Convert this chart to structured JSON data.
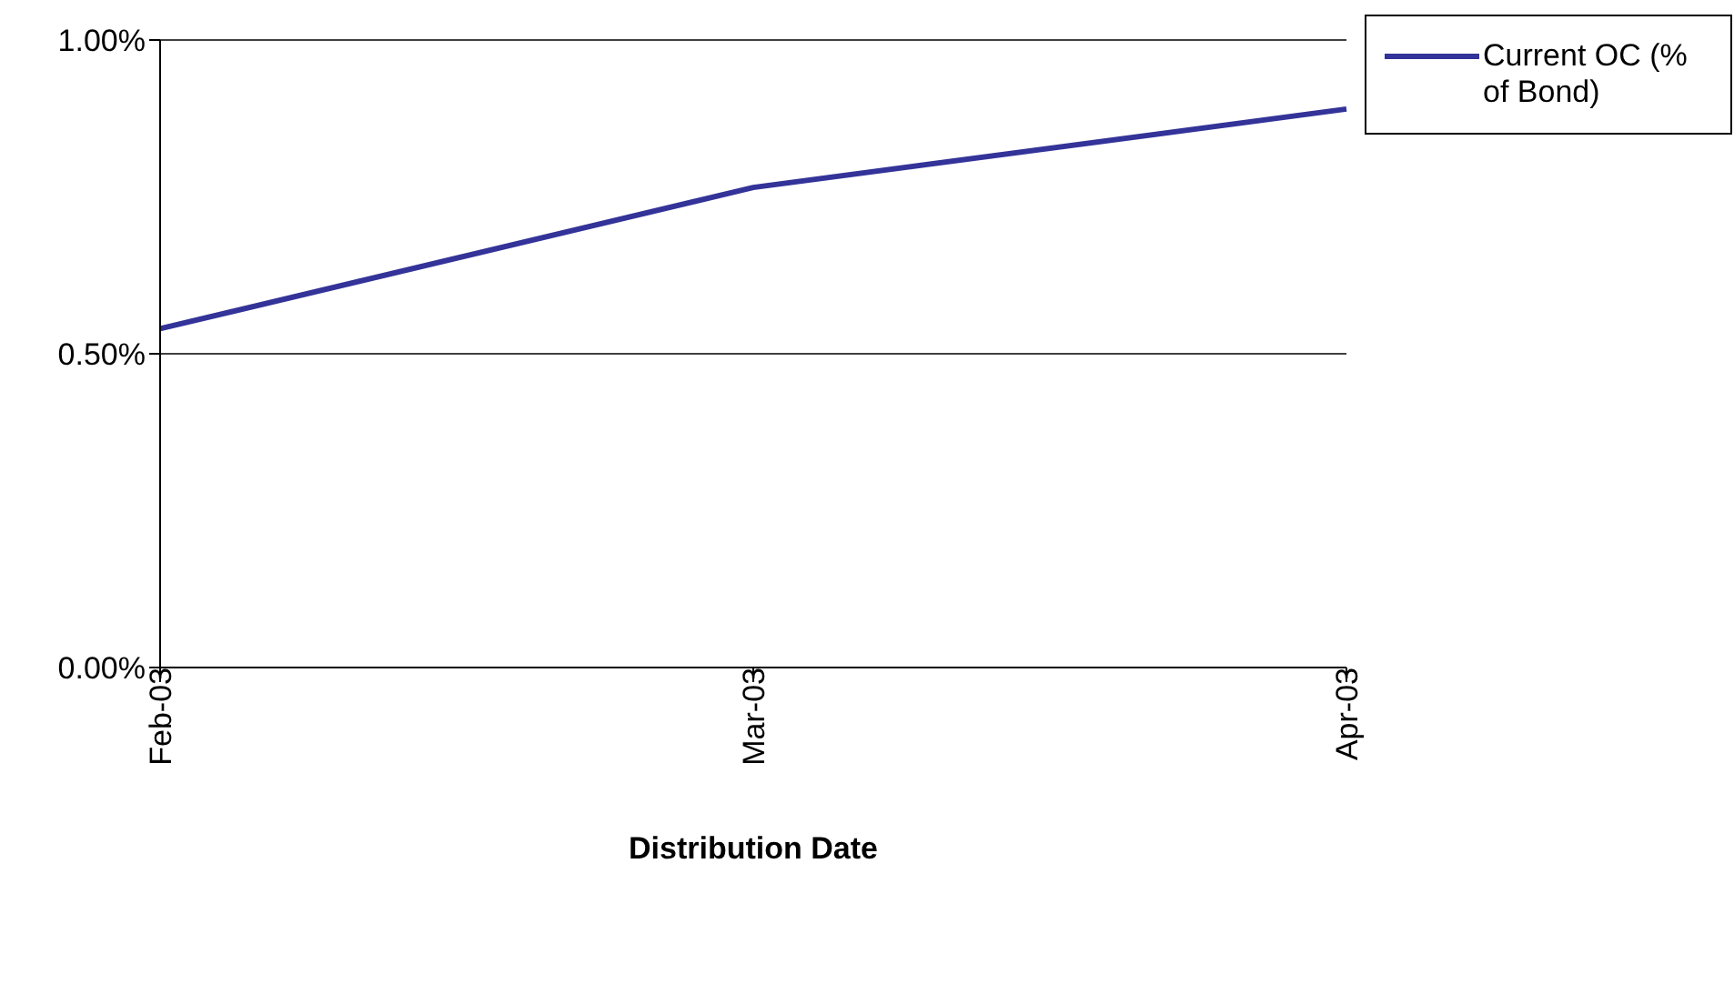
{
  "chart_data": {
    "type": "line",
    "xlabel": "Distribution Date",
    "categories": [
      "Feb-03",
      "Mar-03",
      "Apr-03"
    ],
    "series": [
      {
        "name": "Current OC (% of Bond)",
        "color": "#333399",
        "values": [
          0.54,
          0.765,
          0.89
        ]
      }
    ],
    "ylim": [
      0,
      1
    ],
    "yticks": [
      {
        "value": 0,
        "label": "0.00%"
      },
      {
        "value": 0.5,
        "label": "0.50%"
      },
      {
        "value": 1,
        "label": "1.00%"
      }
    ],
    "grid": "y",
    "legend": "top right",
    "marker": "none",
    "line_style": "solid"
  }
}
